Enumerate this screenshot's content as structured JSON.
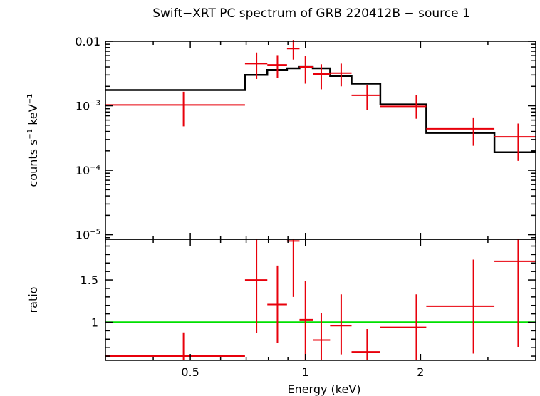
{
  "chart_data": {
    "title": "Swift−XRT PC spectrum of GRB 220412B − source 1",
    "xlabel": "Energy (keV)",
    "x_scale": "log",
    "xlim": [
      0.3,
      4.0
    ],
    "x_ticks": [
      {
        "value": 0.5,
        "label": "0.5"
      },
      {
        "value": 1,
        "label": "1"
      },
      {
        "value": 2,
        "label": "2"
      }
    ],
    "top_panel": {
      "type": "scatter",
      "ylabel": "counts s⁻¹ keV⁻¹",
      "y_scale": "log",
      "ylim": [
        8.5e-06,
        0.01
      ],
      "y_ticks": [
        {
          "value": 0.01,
          "label": "0.01",
          "base": "",
          "exp": ""
        },
        {
          "value": 0.001,
          "label": "",
          "base": "10",
          "exp": "−3"
        },
        {
          "value": 0.0001,
          "label": "",
          "base": "10",
          "exp": "−4"
        },
        {
          "value": 1e-05,
          "label": "",
          "base": "10",
          "exp": "−5"
        }
      ],
      "data": [
        {
          "xlo": 0.3,
          "xhi": 0.695,
          "x": 0.48,
          "y": 0.00103,
          "ylo": 0.00048,
          "yhi": 0.00165
        },
        {
          "xlo": 0.695,
          "xhi": 0.795,
          "x": 0.745,
          "y": 0.0045,
          "ylo": 0.0026,
          "yhi": 0.0067
        },
        {
          "xlo": 0.795,
          "xhi": 0.895,
          "x": 0.845,
          "y": 0.0043,
          "ylo": 0.0027,
          "yhi": 0.0061
        },
        {
          "xlo": 0.895,
          "xhi": 0.965,
          "x": 0.93,
          "y": 0.0077,
          "ylo": 0.0052,
          "yhi": 0.0105
        },
        {
          "xlo": 0.965,
          "xhi": 1.045,
          "x": 1.0,
          "y": 0.004,
          "ylo": 0.0022,
          "yhi": 0.0059
        },
        {
          "xlo": 1.045,
          "xhi": 1.16,
          "x": 1.1,
          "y": 0.0031,
          "ylo": 0.0018,
          "yhi": 0.0044
        },
        {
          "xlo": 1.16,
          "xhi": 1.32,
          "x": 1.24,
          "y": 0.0032,
          "ylo": 0.002,
          "yhi": 0.0045
        },
        {
          "xlo": 1.32,
          "xhi": 1.57,
          "x": 1.45,
          "y": 0.00145,
          "ylo": 0.00085,
          "yhi": 0.0021
        },
        {
          "xlo": 1.57,
          "xhi": 2.07,
          "x": 1.95,
          "y": 0.00098,
          "ylo": 0.00063,
          "yhi": 0.00145
        },
        {
          "xlo": 2.07,
          "xhi": 3.12,
          "x": 2.75,
          "y": 0.00044,
          "ylo": 0.00024,
          "yhi": 0.00066
        },
        {
          "xlo": 3.12,
          "xhi": 4.0,
          "x": 3.6,
          "y": 0.00033,
          "ylo": 0.00014,
          "yhi": 0.00053
        }
      ],
      "model": [
        {
          "xlo": 0.3,
          "xhi": 0.695,
          "y": 0.00175
        },
        {
          "xlo": 0.695,
          "xhi": 0.795,
          "y": 0.003
        },
        {
          "xlo": 0.795,
          "xhi": 0.895,
          "y": 0.0036
        },
        {
          "xlo": 0.895,
          "xhi": 0.965,
          "y": 0.0038
        },
        {
          "xlo": 0.965,
          "xhi": 1.045,
          "y": 0.0041
        },
        {
          "xlo": 1.045,
          "xhi": 1.16,
          "y": 0.0038
        },
        {
          "xlo": 1.16,
          "xhi": 1.32,
          "y": 0.0029
        },
        {
          "xlo": 1.32,
          "xhi": 1.57,
          "y": 0.0022
        },
        {
          "xlo": 1.57,
          "xhi": 2.07,
          "y": 0.00105
        },
        {
          "xlo": 2.07,
          "xhi": 3.12,
          "y": 0.00038
        },
        {
          "xlo": 3.12,
          "xhi": 4.0,
          "y": 0.00019
        }
      ]
    },
    "bottom_panel": {
      "type": "scatter",
      "ylabel": "ratio",
      "y_scale": "linear",
      "ylim": [
        0.55,
        1.98
      ],
      "y_ticks": [
        {
          "value": 1,
          "label": "1"
        },
        {
          "value": 1.5,
          "label": "1.5"
        }
      ],
      "reference_line": 1,
      "data": [
        {
          "xlo": 0.3,
          "xhi": 0.695,
          "x": 0.48,
          "y": 0.6,
          "ylo": 0.55,
          "yhi": 0.88
        },
        {
          "xlo": 0.695,
          "xhi": 0.795,
          "x": 0.745,
          "y": 1.5,
          "ylo": 0.87,
          "yhi": 1.98
        },
        {
          "xlo": 0.795,
          "xhi": 0.895,
          "x": 0.845,
          "y": 1.21,
          "ylo": 0.76,
          "yhi": 1.67
        },
        {
          "xlo": 0.895,
          "xhi": 0.965,
          "x": 0.93,
          "y": 1.96,
          "ylo": 1.3,
          "yhi": 1.98
        },
        {
          "xlo": 0.965,
          "xhi": 1.045,
          "x": 1.0,
          "y": 1.03,
          "ylo": 0.55,
          "yhi": 1.49
        },
        {
          "xlo": 1.045,
          "xhi": 1.16,
          "x": 1.1,
          "y": 0.79,
          "ylo": 0.55,
          "yhi": 1.11
        },
        {
          "xlo": 1.16,
          "xhi": 1.32,
          "x": 1.24,
          "y": 0.96,
          "ylo": 0.62,
          "yhi": 1.33
        },
        {
          "xlo": 1.32,
          "xhi": 1.57,
          "x": 1.45,
          "y": 0.65,
          "ylo": 0.55,
          "yhi": 0.92
        },
        {
          "xlo": 1.57,
          "xhi": 2.07,
          "x": 1.95,
          "y": 0.94,
          "ylo": 0.55,
          "yhi": 1.33
        },
        {
          "xlo": 2.07,
          "xhi": 3.12,
          "x": 2.75,
          "y": 1.19,
          "ylo": 0.63,
          "yhi": 1.74
        },
        {
          "xlo": 3.12,
          "xhi": 4.0,
          "x": 3.6,
          "y": 1.72,
          "ylo": 0.71,
          "yhi": 1.98
        }
      ]
    },
    "colors": {
      "data": "#e8000b",
      "model": "#000000",
      "reference": "#00e000",
      "axes": "#000000"
    }
  }
}
